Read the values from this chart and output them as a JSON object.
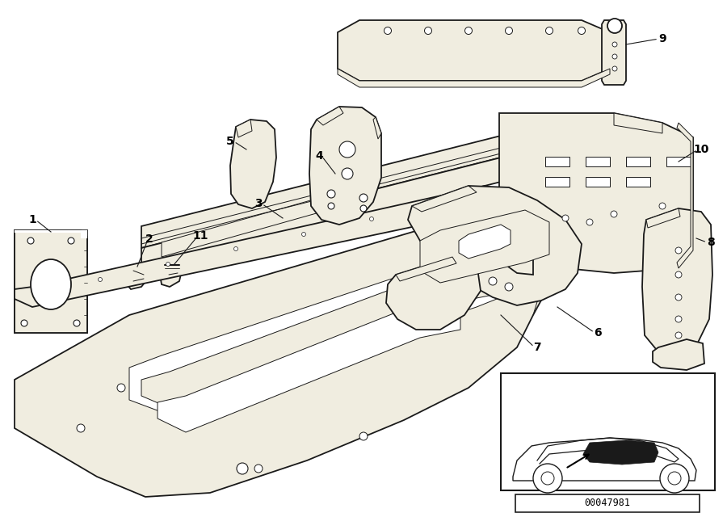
{
  "bg_color": "#ffffff",
  "line_color": "#1a1a1a",
  "part_fill": "#f0ede0",
  "part_edge": "#1a1a1a",
  "white_fill": "#ffffff",
  "callout_color": "#000000",
  "diagram_id": "00047981",
  "lw_main": 1.3,
  "lw_inner": 0.7,
  "fig_w": 9.0,
  "fig_h": 6.35,
  "dpi": 100
}
